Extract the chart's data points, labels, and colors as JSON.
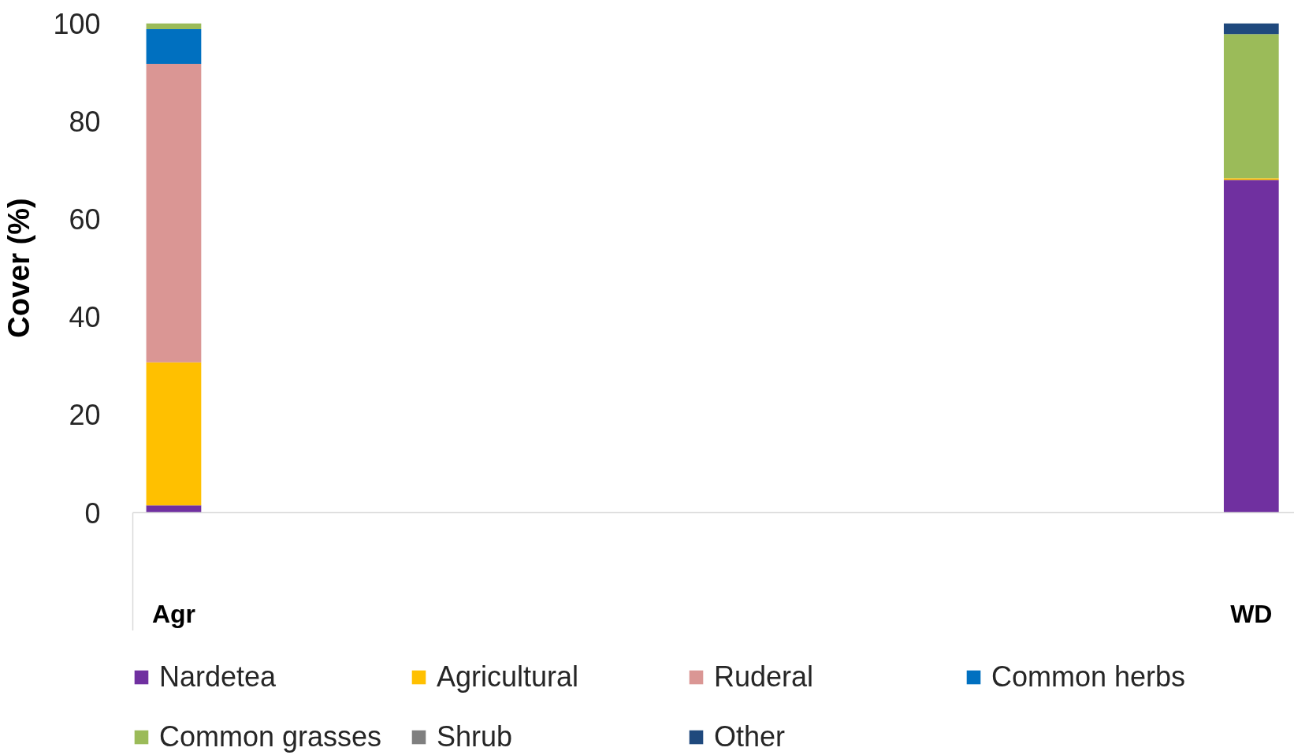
{
  "chart_data": {
    "type": "bar",
    "stacked": true,
    "ylabel": "Cover (%)",
    "categories": [
      "Agr",
      "WD"
    ],
    "ylim": [
      0,
      100
    ],
    "yticks": [
      0,
      20,
      40,
      60,
      80,
      100
    ],
    "legend": "bottom",
    "series": [
      {
        "name": "Nardetea",
        "color": "#7030a0",
        "values": [
          1.5,
          68
        ]
      },
      {
        "name": "Agricultural",
        "color": "#ffc000",
        "values": [
          29.2,
          0.3
        ]
      },
      {
        "name": "Ruderal",
        "color": "#da9694",
        "values": [
          61,
          0
        ]
      },
      {
        "name": "Common herbs",
        "color": "#0070c0",
        "values": [
          7.1,
          0
        ]
      },
      {
        "name": "Common grasses",
        "color": "#9bbb59",
        "values": [
          1.2,
          29.5
        ]
      },
      {
        "name": "Shrub",
        "color": "#7f7f7f",
        "values": [
          0,
          0
        ]
      },
      {
        "name": "Other",
        "color": "#1f497d",
        "values": [
          0,
          2.2
        ]
      }
    ]
  }
}
